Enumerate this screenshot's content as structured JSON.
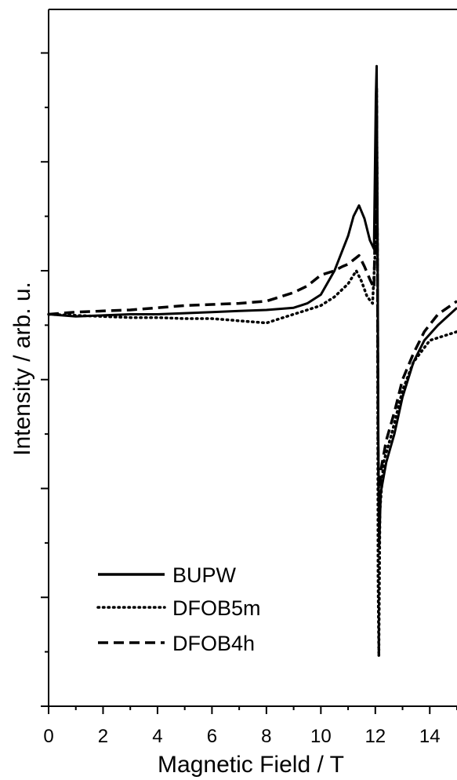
{
  "chart_data": {
    "type": "line",
    "title": "",
    "xlabel": "Magnetic Field / T",
    "ylabel": "Intensity / arb. u.",
    "xlim": [
      0,
      15
    ],
    "ylim": [
      -1.8,
      1.4
    ],
    "xticks": [
      "0",
      "2",
      "4",
      "6",
      "8",
      "10",
      "12",
      "14"
    ],
    "grid": false,
    "legend_position": "bottom-left",
    "series": [
      {
        "name": "BUPW",
        "line_style": "solid",
        "color": "#000000",
        "points": [
          [
            0,
            0
          ],
          [
            1,
            -0.01
          ],
          [
            2,
            -0.005
          ],
          [
            3,
            0
          ],
          [
            4,
            0
          ],
          [
            5,
            0.005
          ],
          [
            6,
            0.01
          ],
          [
            7,
            0.015
          ],
          [
            8,
            0.02
          ],
          [
            9,
            0.03
          ],
          [
            9.5,
            0.05
          ],
          [
            10,
            0.09
          ],
          [
            10.5,
            0.2
          ],
          [
            11,
            0.36
          ],
          [
            11.2,
            0.45
          ],
          [
            11.4,
            0.5
          ],
          [
            11.6,
            0.44
          ],
          [
            11.8,
            0.34
          ],
          [
            11.95,
            0.3
          ],
          [
            12.02,
            1.0
          ],
          [
            12.05,
            1.14
          ],
          [
            12.08,
            0.4
          ],
          [
            12.11,
            -0.55
          ],
          [
            12.14,
            -1.07
          ],
          [
            12.2,
            -0.82
          ],
          [
            12.4,
            -0.68
          ],
          [
            12.7,
            -0.55
          ],
          [
            13,
            -0.38
          ],
          [
            13.4,
            -0.22
          ],
          [
            13.8,
            -0.12
          ],
          [
            14.3,
            -0.05
          ],
          [
            15,
            0.03
          ]
        ]
      },
      {
        "name": "DFOB5m",
        "line_style": "dotted",
        "color": "#000000",
        "points": [
          [
            0,
            0
          ],
          [
            1,
            -0.005
          ],
          [
            2,
            -0.01
          ],
          [
            3,
            -0.015
          ],
          [
            4,
            -0.015
          ],
          [
            5,
            -0.02
          ],
          [
            6,
            -0.02
          ],
          [
            7,
            -0.03
          ],
          [
            8,
            -0.04
          ],
          [
            8.5,
            -0.02
          ],
          [
            9,
            0
          ],
          [
            9.5,
            0.02
          ],
          [
            10,
            0.04
          ],
          [
            10.5,
            0.08
          ],
          [
            11,
            0.14
          ],
          [
            11.3,
            0.2
          ],
          [
            11.5,
            0.15
          ],
          [
            11.7,
            0.08
          ],
          [
            11.9,
            0.05
          ],
          [
            12.0,
            0.3
          ],
          [
            12.05,
            1.04
          ],
          [
            12.08,
            0.2
          ],
          [
            12.1,
            -1.2
          ],
          [
            12.13,
            -1.57
          ],
          [
            12.17,
            -0.9
          ],
          [
            12.3,
            -0.68
          ],
          [
            12.6,
            -0.55
          ],
          [
            13,
            -0.35
          ],
          [
            13.4,
            -0.22
          ],
          [
            14,
            -0.12
          ],
          [
            15,
            -0.08
          ]
        ]
      },
      {
        "name": "DFOB4h",
        "line_style": "dashed",
        "color": "#000000",
        "points": [
          [
            0,
            0
          ],
          [
            1,
            0.01
          ],
          [
            2,
            0.015
          ],
          [
            3,
            0.02
          ],
          [
            4,
            0.03
          ],
          [
            5,
            0.04
          ],
          [
            6,
            0.045
          ],
          [
            7,
            0.05
          ],
          [
            8,
            0.06
          ],
          [
            9,
            0.1
          ],
          [
            9.5,
            0.13
          ],
          [
            10,
            0.18
          ],
          [
            10.5,
            0.2
          ],
          [
            10.8,
            0.22
          ],
          [
            11,
            0.23
          ],
          [
            11.2,
            0.25
          ],
          [
            11.4,
            0.27
          ],
          [
            11.6,
            0.22
          ],
          [
            11.8,
            0.16
          ],
          [
            11.95,
            0.12
          ],
          [
            12.02,
            0.6
          ],
          [
            12.05,
            0.95
          ],
          [
            12.08,
            0.2
          ],
          [
            12.1,
            -0.6
          ],
          [
            12.14,
            -0.95
          ],
          [
            12.2,
            -0.72
          ],
          [
            12.4,
            -0.58
          ],
          [
            12.7,
            -0.45
          ],
          [
            13,
            -0.3
          ],
          [
            13.4,
            -0.18
          ],
          [
            13.8,
            -0.08
          ],
          [
            14.3,
            0
          ],
          [
            15,
            0.06
          ]
        ]
      }
    ]
  }
}
